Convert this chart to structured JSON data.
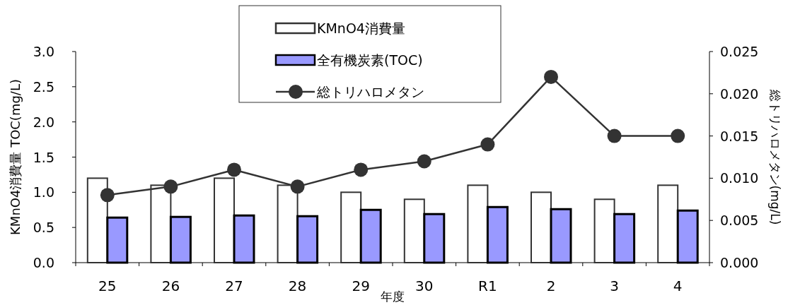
{
  "chart_data": {
    "type": "bar",
    "xlabel": "年度",
    "ylabel": "KMnO4消費量  TOC(mg/L)",
    "y2label": "総トリハロメタン(mg/L)",
    "categories": [
      "25",
      "26",
      "27",
      "28",
      "29",
      "30",
      "R1",
      "2",
      "3",
      "4"
    ],
    "series": [
      {
        "name": "KMnO4消費量",
        "color": "#ffffff",
        "values": [
          1.2,
          1.1,
          1.2,
          1.1,
          1.0,
          0.9,
          1.1,
          1.0,
          0.9,
          1.1
        ]
      },
      {
        "name": "全有機炭素(TOC)",
        "color": "#9999ff",
        "values": [
          0.64,
          0.65,
          0.67,
          0.66,
          0.75,
          0.69,
          0.79,
          0.76,
          0.69,
          0.74
        ]
      },
      {
        "name": "総トリハロメタン",
        "type": "line",
        "axis": "y2",
        "color": "#333333",
        "marker": "circle",
        "values": [
          0.008,
          0.009,
          0.011,
          0.009,
          0.011,
          0.012,
          0.014,
          0.022,
          0.015,
          0.015
        ]
      }
    ],
    "ylim": [
      0,
      3.0
    ],
    "yticks": [
      {
        "value": 0,
        "label": "0.0"
      },
      {
        "value": 0.5,
        "label": "0.5"
      },
      {
        "value": 1,
        "label": "1.0"
      },
      {
        "value": 1.5,
        "label": "1.5"
      },
      {
        "value": 2,
        "label": "2.0"
      },
      {
        "value": 2.5,
        "label": "2.5"
      },
      {
        "value": 3,
        "label": "3.0"
      }
    ],
    "y2lim": [
      0,
      0.025
    ],
    "y2ticks": [
      {
        "value": 0,
        "label": "0.000"
      },
      {
        "value": 0.005,
        "label": "0.005"
      },
      {
        "value": 0.01,
        "label": "0.010"
      },
      {
        "value": 0.015,
        "label": "0.015"
      },
      {
        "value": 0.02,
        "label": "0.020"
      },
      {
        "value": 0.025,
        "label": "0.025"
      }
    ],
    "legend": "top"
  }
}
